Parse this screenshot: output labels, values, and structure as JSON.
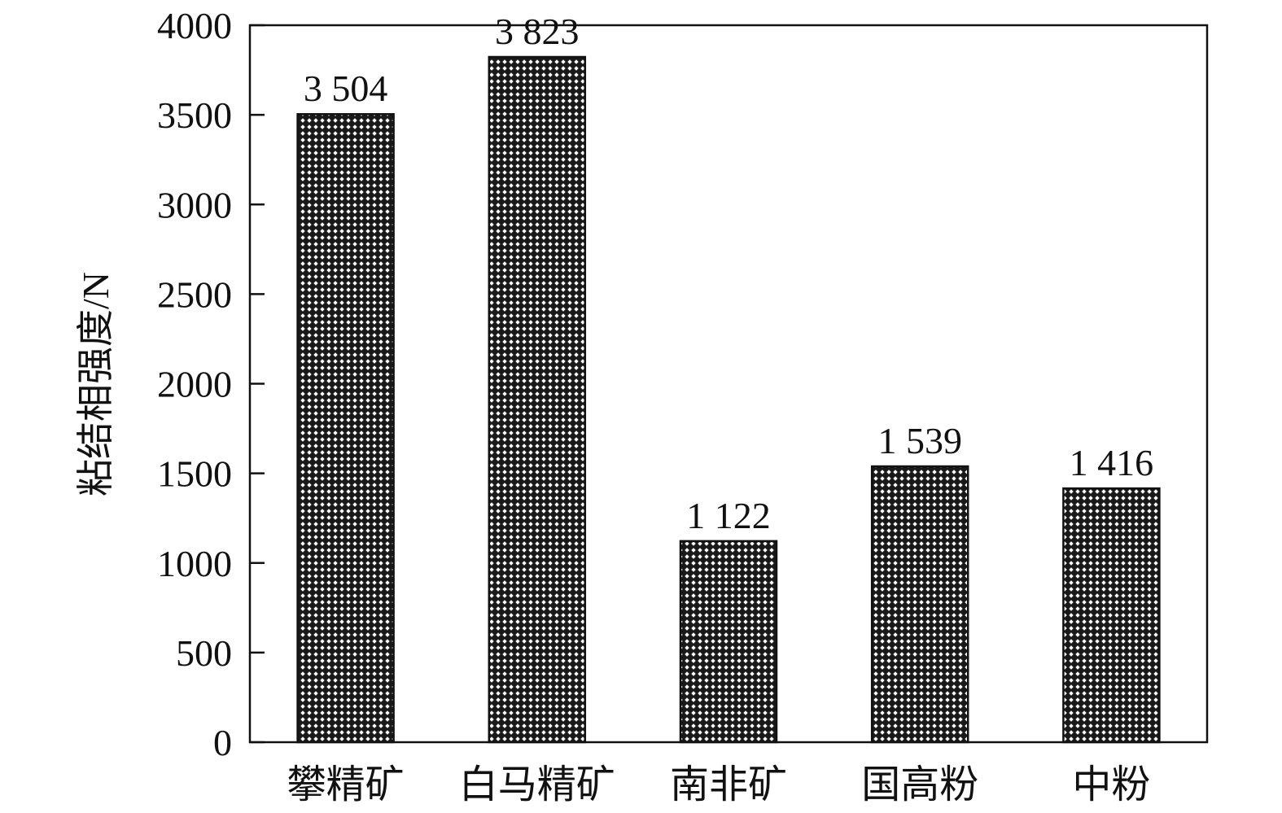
{
  "chart_data": {
    "type": "bar",
    "title": "",
    "xlabel": "",
    "ylabel": "粘结相强度/N",
    "ylim": [
      0,
      4000
    ],
    "yticks": [
      0,
      500,
      1000,
      1500,
      2000,
      2500,
      3000,
      3500,
      4000
    ],
    "categories": [
      "攀精矿",
      "白马精矿",
      "南非矿",
      "国高粉",
      "中粉"
    ],
    "values": [
      3504,
      3823,
      1122,
      1539,
      1416
    ],
    "data_labels": [
      "3 504",
      "3 823",
      "1 122",
      "1 539",
      "1 416"
    ],
    "grid": false,
    "bar_fill": "crosshatch",
    "colors": {
      "bar": "#1a1a1a",
      "axis": "#111111"
    }
  }
}
